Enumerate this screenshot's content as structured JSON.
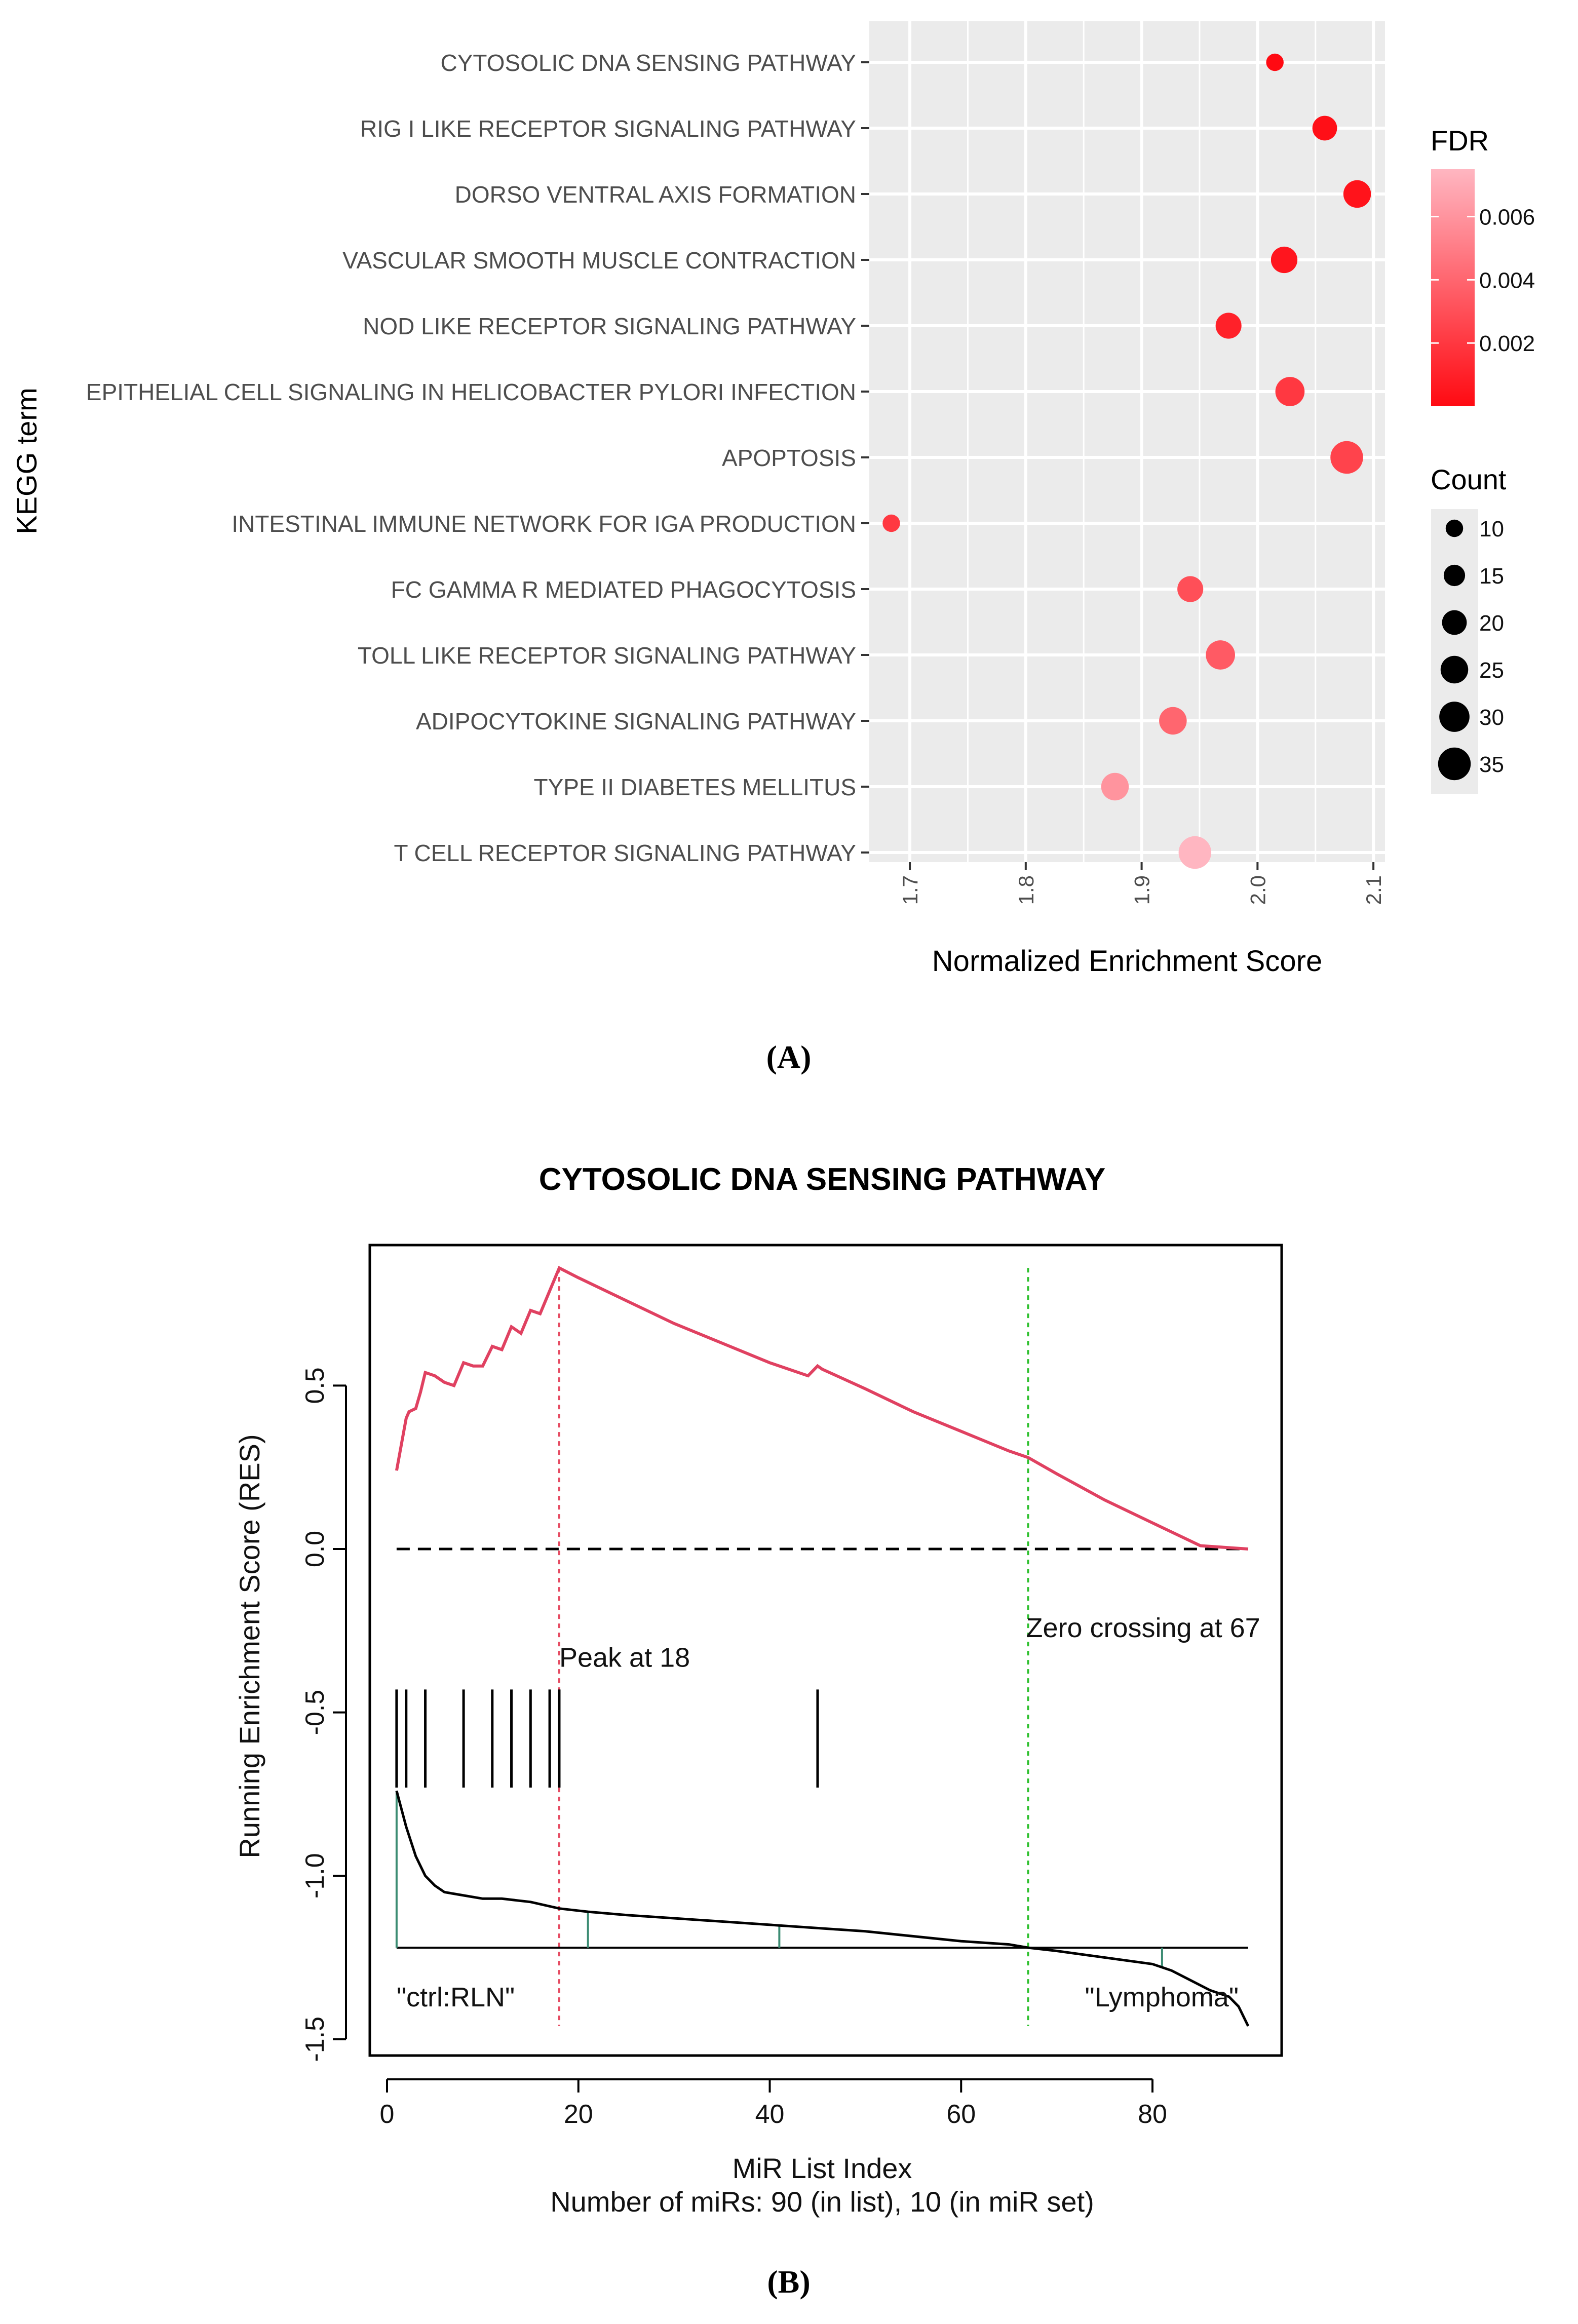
{
  "panel_labels": {
    "a": "(A)",
    "b": "(B)"
  },
  "chart_data": [
    {
      "type": "scatter",
      "variant": "dot-plot",
      "xlabel": "Normalized Enrichment Score",
      "ylabel": "KEGG term",
      "xlim": [
        1.665,
        2.11
      ],
      "x_ticks": [
        1.7,
        1.8,
        1.9,
        2.0,
        2.1
      ],
      "x_tick_labels": [
        "1.7",
        "1.8",
        "1.9",
        "2.0",
        "2.1"
      ],
      "grid": true,
      "terms": [
        {
          "name": "CYTOSOLIC DNA SENSING PATHWAY",
          "nes": 2.015,
          "fdr": 0.0,
          "count": 10
        },
        {
          "name": "RIG I LIKE RECEPTOR SIGNALING PATHWAY",
          "nes": 2.058,
          "fdr": 0.0002,
          "count": 20
        },
        {
          "name": "DORSO VENTRAL AXIS FORMATION",
          "nes": 2.086,
          "fdr": 0.0004,
          "count": 25
        },
        {
          "name": "VASCULAR SMOOTH MUSCLE CONTRACTION",
          "nes": 2.023,
          "fdr": 0.0005,
          "count": 23
        },
        {
          "name": "NOD LIKE RECEPTOR SIGNALING PATHWAY",
          "nes": 1.975,
          "fdr": 0.001,
          "count": 22
        },
        {
          "name": "EPITHELIAL CELL SIGNALING IN HELICOBACTER PYLORI INFECTION",
          "nes": 2.028,
          "fdr": 0.002,
          "count": 28
        },
        {
          "name": "APOPTOSIS",
          "nes": 2.077,
          "fdr": 0.0025,
          "count": 35
        },
        {
          "name": "INTESTINAL IMMUNE NETWORK FOR IGA PRODUCTION",
          "nes": 1.684,
          "fdr": 0.002,
          "count": 10
        },
        {
          "name": "FC GAMMA R MEDIATED PHAGOCYTOSIS",
          "nes": 1.942,
          "fdr": 0.003,
          "count": 22
        },
        {
          "name": "TOLL LIKE RECEPTOR SIGNALING PATHWAY",
          "nes": 1.968,
          "fdr": 0.0035,
          "count": 28
        },
        {
          "name": "ADIPOCYTOKINE SIGNALING PATHWAY",
          "nes": 1.927,
          "fdr": 0.004,
          "count": 25
        },
        {
          "name": "TYPE II DIABETES MELLITUS",
          "nes": 1.877,
          "fdr": 0.006,
          "count": 25
        },
        {
          "name": "T CELL RECEPTOR SIGNALING PATHWAY",
          "nes": 1.946,
          "fdr": 0.0075,
          "count": 35
        }
      ],
      "fdr_legend": {
        "title": "FDR",
        "range": [
          0.0,
          0.0075
        ],
        "tick_values": [
          0.006,
          0.004,
          0.002
        ],
        "tick_labels": [
          "0.006",
          "0.004",
          "0.002"
        ],
        "low_color": "#ff0a12",
        "high_color": "#ffb6c1"
      },
      "count_legend": {
        "title": "Count",
        "values": [
          10,
          15,
          20,
          25,
          30,
          35
        ],
        "labels": [
          "10",
          "15",
          "20",
          "25",
          "30",
          "35"
        ]
      },
      "colors": {
        "panel_bg": "#ebebeb",
        "grid": "#ffffff"
      }
    },
    {
      "type": "line",
      "variant": "gsea-enrichment",
      "title": "CYTOSOLIC DNA SENSING PATHWAY",
      "xlabel": "MiR List Index",
      "subtitle": "Number of miRs: 90 (in list), 10 (in miR set)",
      "ylabel": "Running Enrichment Score (RES)",
      "xlim": [
        -1.8,
        93.5
      ],
      "ylim": [
        -1.55,
        0.93
      ],
      "x_ticks": [
        0,
        20,
        40,
        60,
        80
      ],
      "x_tick_labels": [
        "0",
        "20",
        "40",
        "60",
        "80"
      ],
      "y_ticks": [
        0.5,
        0.0,
        -0.5,
        -1.0,
        -1.5
      ],
      "y_tick_labels": [
        "0.5",
        "0.0",
        "-0.5",
        "-1.0",
        "-1.5"
      ],
      "running_score": {
        "x": [
          1,
          2,
          2.3,
          3,
          3.5,
          4,
          5,
          6,
          7,
          8,
          9,
          10,
          11,
          12,
          13,
          14,
          15,
          16,
          17,
          18,
          20,
          25,
          30,
          35,
          40,
          44,
          45,
          45.5,
          50,
          55,
          60,
          65,
          67,
          70,
          75,
          80,
          85,
          90
        ],
        "y": [
          0.24,
          0.4,
          0.42,
          0.43,
          0.48,
          0.54,
          0.53,
          0.51,
          0.5,
          0.57,
          0.56,
          0.56,
          0.62,
          0.61,
          0.68,
          0.66,
          0.73,
          0.72,
          0.79,
          0.86,
          0.83,
          0.76,
          0.69,
          0.63,
          0.57,
          0.53,
          0.56,
          0.55,
          0.49,
          0.42,
          0.36,
          0.3,
          0.28,
          0.23,
          0.15,
          0.08,
          0.01,
          0.0
        ]
      },
      "baseline": 0.0,
      "hits": [
        1,
        2,
        4,
        8,
        11,
        13,
        15,
        17,
        18,
        45
      ],
      "hits_range": [
        -0.43,
        -0.73
      ],
      "ranked_metric": {
        "baseline": -1.22,
        "x": [
          1,
          2,
          3,
          4,
          5,
          6,
          8,
          10,
          12,
          15,
          18,
          21,
          25,
          30,
          40,
          50,
          60,
          65,
          67,
          70,
          75,
          80,
          82,
          84,
          86,
          88,
          89,
          90
        ],
        "y": [
          -0.74,
          -0.85,
          -0.94,
          -1.0,
          -1.03,
          -1.05,
          -1.06,
          -1.07,
          -1.07,
          -1.08,
          -1.1,
          -1.11,
          -1.12,
          -1.13,
          -1.15,
          -1.17,
          -1.2,
          -1.21,
          -1.22,
          -1.23,
          -1.25,
          -1.27,
          -1.29,
          -1.32,
          -1.35,
          -1.37,
          -1.4,
          -1.46
        ]
      },
      "peak": {
        "x": 18,
        "label": "Peak at 18",
        "color": "#e64b62"
      },
      "zero_crossing": {
        "x": 67,
        "label": "Zero crossing at 67",
        "color": "#2fc02f"
      },
      "left_label": "\"ctrl:RLN\"",
      "right_label": "\"Lymphoma\"",
      "colors": {
        "curve": "#e04161",
        "metric_ticks": "#3c8c73"
      }
    }
  ]
}
